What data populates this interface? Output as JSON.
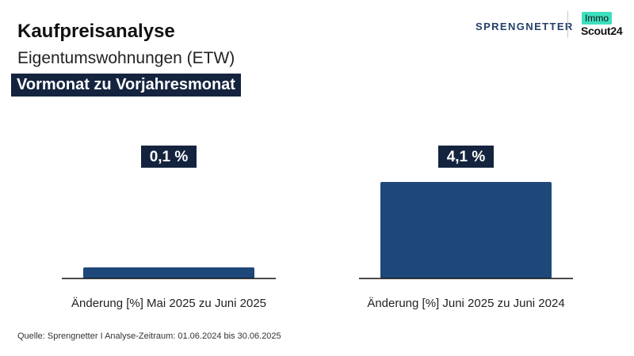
{
  "header": {
    "title": "Kaufpreisanalyse",
    "subtitle": "Eigentumswohnungen (ETW)",
    "tag": "Vormonat zu Vorjahresmonat"
  },
  "brand": {
    "sprengnetter": "SPRENGNETTER",
    "immo": "Immo",
    "scout": "Scout24"
  },
  "colors": {
    "bar": "#1e487a",
    "label_bg": "#14243f",
    "accent": "#3de0be"
  },
  "chart_data": {
    "type": "bar",
    "categories": [
      "Änderung [%] Mai 2025 zu Juni 2025",
      "Änderung [%] Juni 2025 zu Juni 2024"
    ],
    "values": [
      0.1,
      4.1
    ],
    "value_labels": [
      "0,1 %",
      "4,1 %"
    ],
    "ylim": [
      0,
      4.1
    ],
    "grid": false,
    "legend": "none"
  },
  "footer": {
    "source": "Quelle: Sprengnetter I Analyse-Zeitraum: 01.06.2024 bis 30.06.2025"
  }
}
